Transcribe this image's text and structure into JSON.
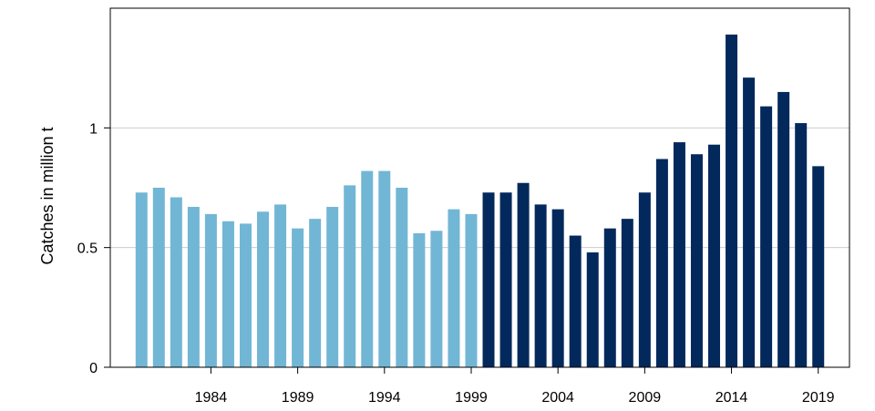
{
  "chart_data": {
    "type": "bar",
    "title": "",
    "xlabel": "",
    "ylabel": "Catches in million t",
    "ylim": [
      0,
      1.5
    ],
    "yticks": [
      0,
      0.5,
      1
    ],
    "ytick_labels": [
      "0",
      "0.5",
      "1"
    ],
    "xlim": [
      1978.2,
      2020.8
    ],
    "xticks": [
      1984,
      1989,
      1994,
      1999,
      2004,
      2009,
      2014,
      2019
    ],
    "xtick_labels": [
      "1984",
      "1989",
      "1994",
      "1999",
      "2004",
      "2009",
      "2014",
      "2019"
    ],
    "grid": "horizontal",
    "legend": "none",
    "colors": {
      "early": "#72b6d5",
      "late": "#03295c",
      "grid": "#cccccc",
      "axis": "#000000"
    },
    "series": [
      {
        "color": "#72b6d5",
        "x": [
          1980,
          1981,
          1982,
          1983,
          1984,
          1985,
          1986,
          1987,
          1988,
          1989,
          1990,
          1991,
          1992,
          1993,
          1994,
          1995,
          1996,
          1997,
          1998,
          1999
        ],
        "values": [
          0.73,
          0.75,
          0.71,
          0.67,
          0.64,
          0.61,
          0.6,
          0.65,
          0.68,
          0.58,
          0.62,
          0.67,
          0.76,
          0.82,
          0.82,
          0.75,
          0.56,
          0.57,
          0.66,
          0.64
        ]
      },
      {
        "color": "#03295c",
        "x": [
          2000,
          2001,
          2002,
          2003,
          2004,
          2005,
          2006,
          2007,
          2008,
          2009,
          2010,
          2011,
          2012,
          2013,
          2014,
          2015,
          2016,
          2017,
          2018,
          2019
        ],
        "values": [
          0.73,
          0.73,
          0.77,
          0.68,
          0.66,
          0.55,
          0.48,
          0.58,
          0.62,
          0.73,
          0.87,
          0.94,
          0.89,
          0.93,
          1.39,
          1.21,
          1.09,
          1.15,
          1.02,
          0.84
        ]
      }
    ]
  }
}
